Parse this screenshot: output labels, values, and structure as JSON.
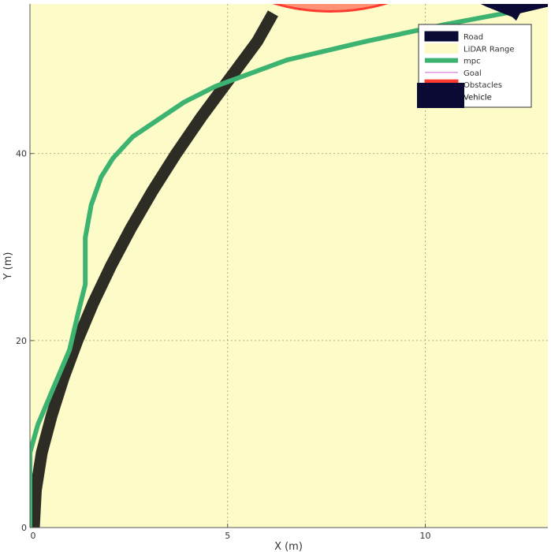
{
  "chart_data": {
    "type": "line",
    "xlabel": "X (m)",
    "ylabel": "Y (m)",
    "xlim": [
      0,
      13.1
    ],
    "ylim": [
      0,
      56
    ],
    "x_ticks": [
      0,
      5,
      10
    ],
    "y_ticks": [
      0,
      20,
      40
    ],
    "grid": true,
    "legend_position": "top-right",
    "background_color": "#fdfcc8",
    "legend": [
      {
        "name": "Road",
        "color": "#0a0a35",
        "style": "patch"
      },
      {
        "name": "LiDAR Range",
        "color": "#fdfcc8",
        "style": "patch"
      },
      {
        "name": "mpc",
        "color": "#3cb371",
        "style": "thick-line"
      },
      {
        "name": "Goal",
        "color": "#cc66cc",
        "style": "thin-line"
      },
      {
        "name": "Obstacles",
        "color": "#ff3b30",
        "style": "patch"
      },
      {
        "name": "Vehicle",
        "color": "#0a0a35",
        "style": "patch"
      }
    ],
    "series": [
      {
        "name": "Road",
        "color": "#2d2d26",
        "points": [
          [
            0.1,
            0
          ],
          [
            0.15,
            4
          ],
          [
            0.3,
            8
          ],
          [
            0.55,
            12
          ],
          [
            0.85,
            16
          ],
          [
            1.2,
            20
          ],
          [
            1.6,
            24
          ],
          [
            2.05,
            28
          ],
          [
            2.55,
            32
          ],
          [
            3.1,
            36
          ],
          [
            3.7,
            40
          ],
          [
            4.35,
            44
          ],
          [
            5.05,
            48
          ],
          [
            5.75,
            52
          ],
          [
            6.15,
            55
          ]
        ]
      },
      {
        "name": "mpc",
        "color": "#3cb371",
        "points": [
          [
            0.0,
            0
          ],
          [
            0.0,
            8
          ],
          [
            0.2,
            11
          ],
          [
            0.6,
            15
          ],
          [
            1.0,
            19
          ],
          [
            1.25,
            23.5
          ],
          [
            1.4,
            26
          ],
          [
            1.4,
            31
          ],
          [
            1.55,
            34.5
          ],
          [
            1.8,
            37.5
          ],
          [
            2.1,
            39.5
          ],
          [
            2.6,
            41.8
          ],
          [
            3.9,
            45.5
          ],
          [
            4.7,
            47.2
          ],
          [
            6.5,
            50
          ],
          [
            8.5,
            52
          ],
          [
            10.5,
            53.8
          ],
          [
            12.0,
            55.0
          ],
          [
            13.1,
            56
          ]
        ]
      }
    ],
    "obstacle": {
      "name": "Obstacles",
      "color": "#ff3b30",
      "center": [
        7.6,
        62.5
      ],
      "radius_x": 3.0,
      "radius_y": 7.3
    },
    "vehicle": {
      "name": "Vehicle",
      "color": "#0a0a35",
      "points": [
        [
          11.4,
          56
        ],
        [
          11.55,
          55.7
        ],
        [
          12.2,
          54.6
        ],
        [
          12.3,
          54.2
        ],
        [
          12.4,
          55.0
        ],
        [
          13.1,
          55.7
        ],
        [
          13.1,
          56
        ]
      ]
    }
  }
}
